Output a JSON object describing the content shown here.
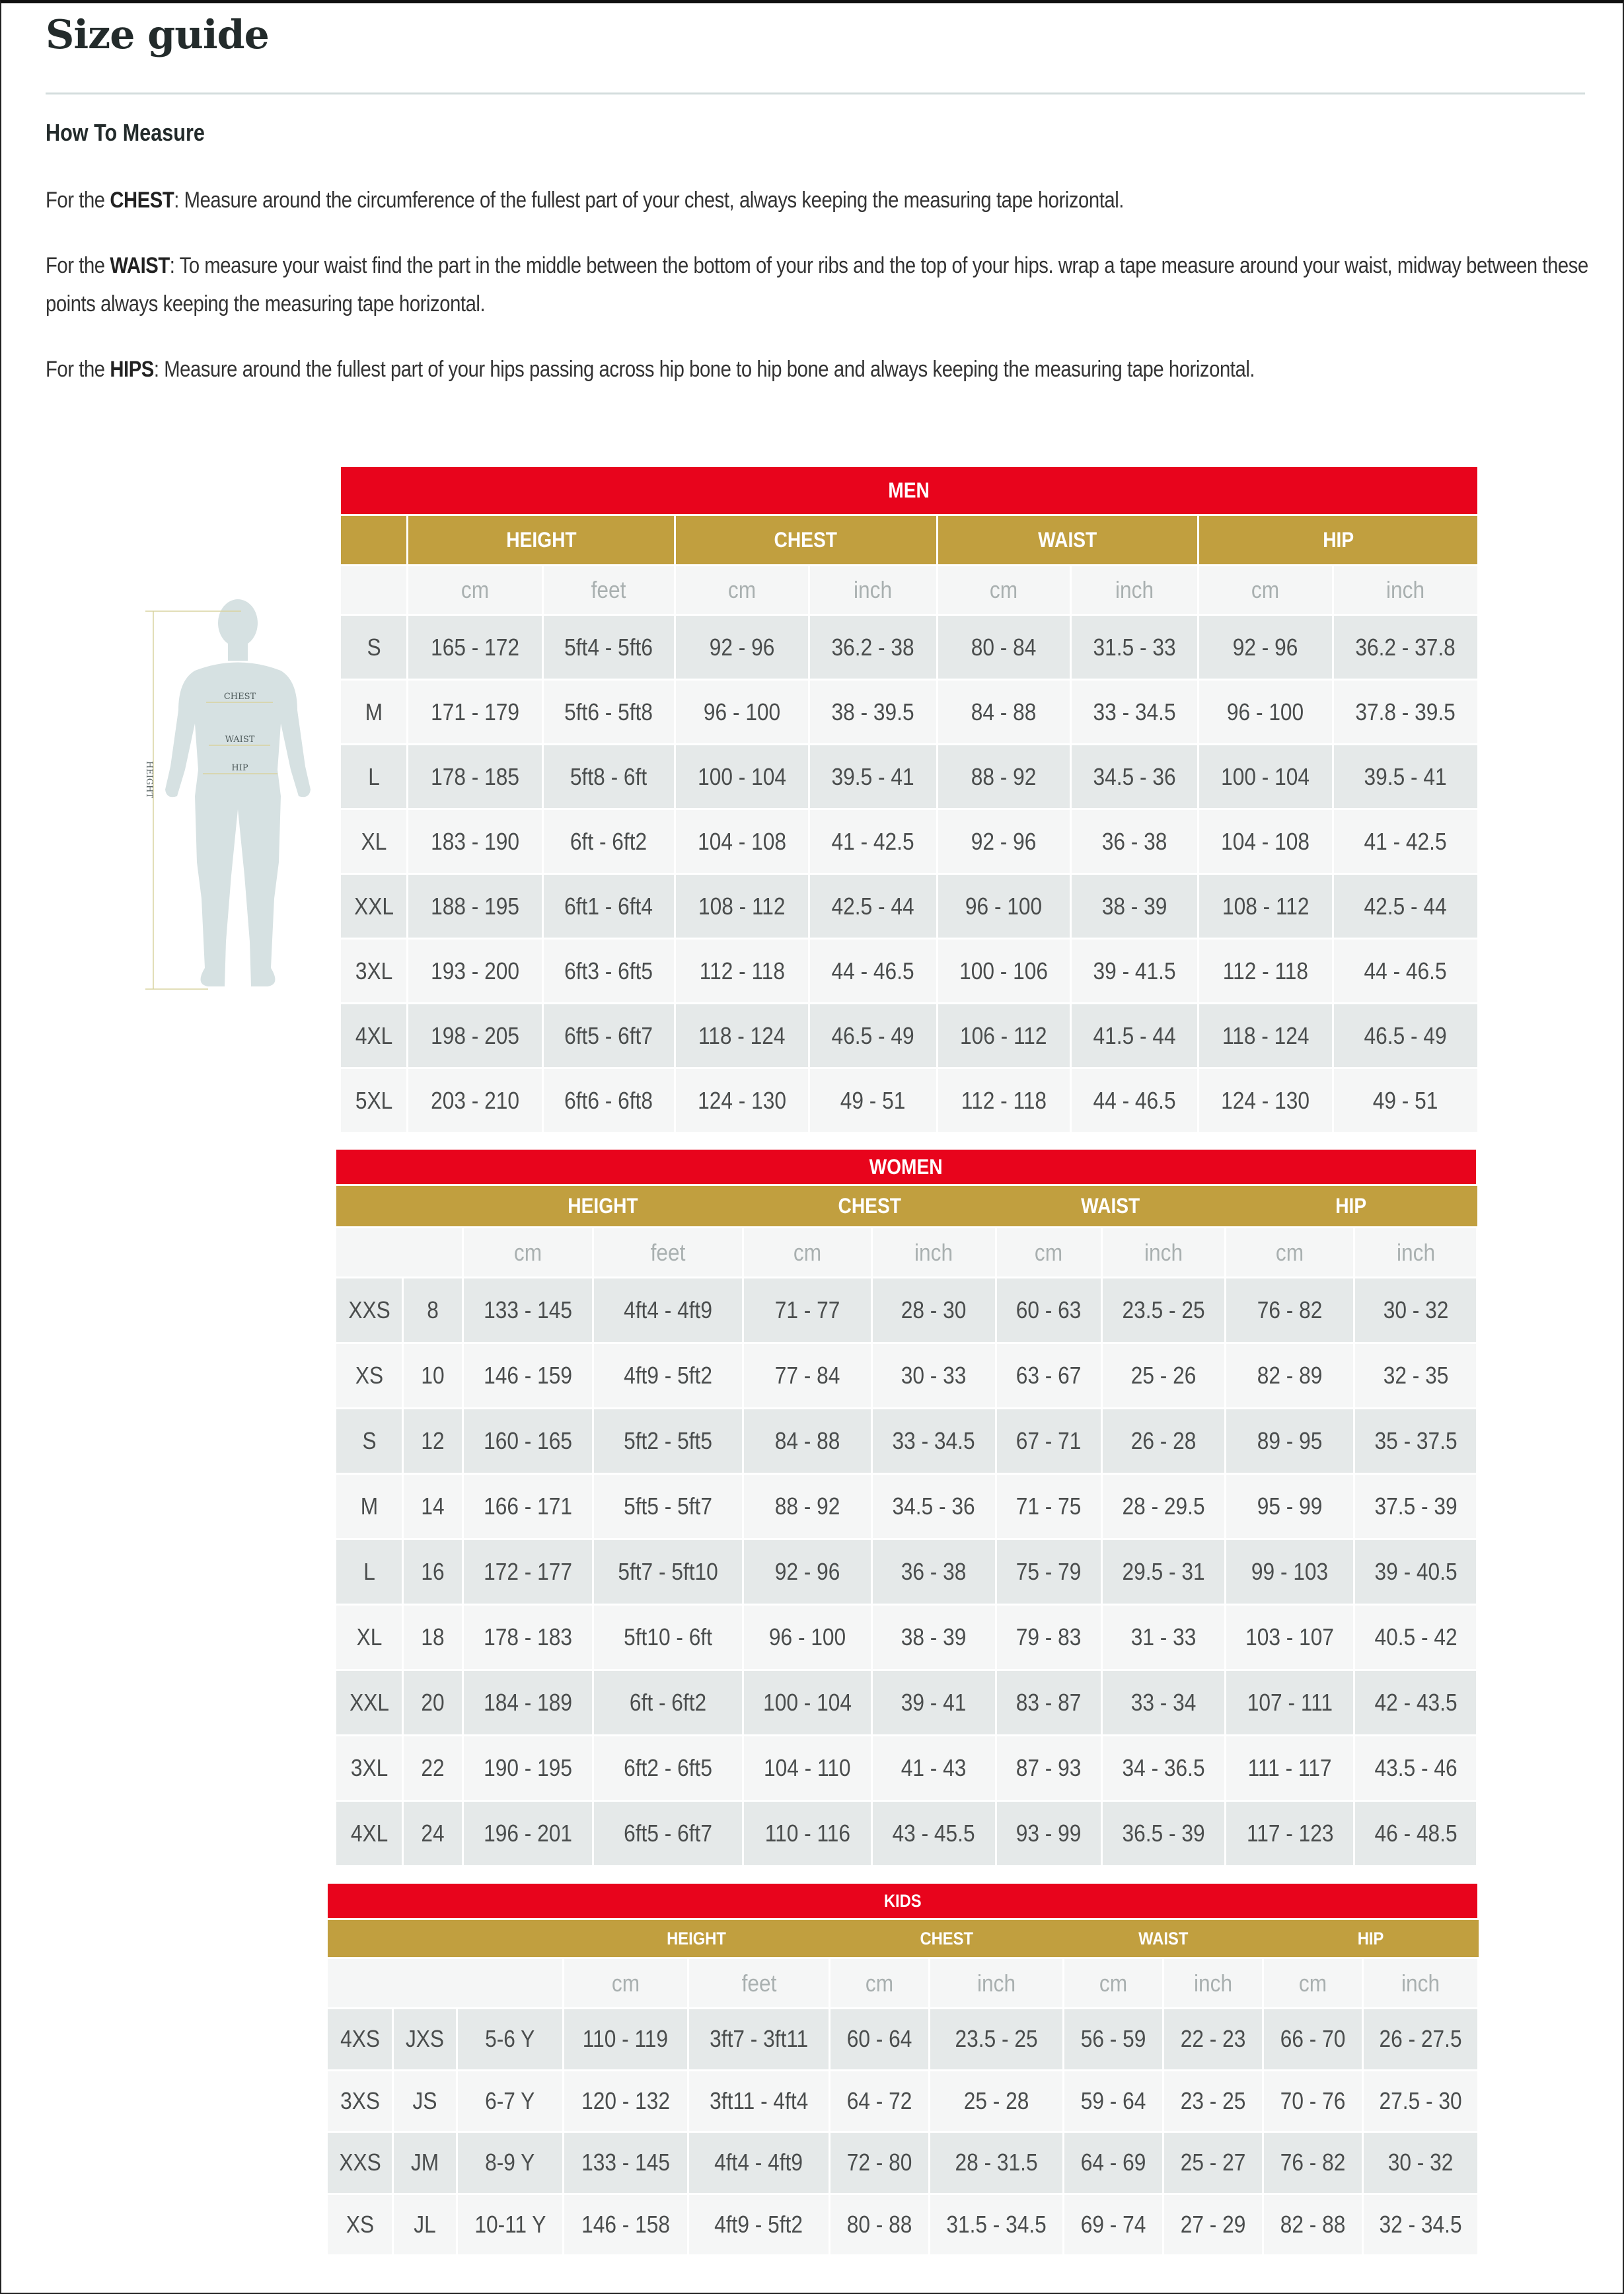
{
  "title": "Size guide",
  "how_to": {
    "heading": "How To Measure",
    "items": [
      {
        "prefix": "For the ",
        "term": "CHEST",
        "text": ": Measure around the circumference of the fullest part of your chest, always keeping the measuring tape horizontal."
      },
      {
        "prefix": "For the ",
        "term": "WAIST",
        "text": ": To measure your waist find the part in the middle between the bottom of your ribs and the top of your hips. wrap a tape measure around your waist, midway between these points always keeping the measuring tape horizontal."
      },
      {
        "prefix": "For the ",
        "term": "HIPS",
        "text": ": Measure around the fullest part of your hips passing across hip bone to hip bone and always keeping the measuring tape horizontal."
      }
    ]
  },
  "figure": {
    "labels": {
      "height": "HEIGHT",
      "chest": "CHEST",
      "waist": "WAIST",
      "hip": "HIP"
    }
  },
  "colors": {
    "title_bar": "#e8041c",
    "group_bar": "#c19f3f",
    "row_dark": "#e5e9e9",
    "row_light": "#f5f6f6"
  },
  "tables": {
    "men": {
      "title": "MEN",
      "groups": [
        "HEIGHT",
        "CHEST",
        "WAIST",
        "HIP"
      ],
      "units": [
        "cm",
        "feet",
        "cm",
        "inch",
        "cm",
        "inch",
        "cm",
        "inch"
      ],
      "rows": [
        [
          "S",
          "165 - 172",
          "5ft4 - 5ft6",
          "92 - 96",
          "36.2 - 38",
          "80 - 84",
          "31.5 - 33",
          "92 - 96",
          "36.2 - 37.8"
        ],
        [
          "M",
          "171 - 179",
          "5ft6 - 5ft8",
          "96 - 100",
          "38 - 39.5",
          "84 - 88",
          "33 - 34.5",
          "96 - 100",
          "37.8 - 39.5"
        ],
        [
          "L",
          "178 - 185",
          "5ft8 - 6ft",
          "100 - 104",
          "39.5 - 41",
          "88 - 92",
          "34.5 - 36",
          "100 - 104",
          "39.5 - 41"
        ],
        [
          "XL",
          "183 - 190",
          "6ft - 6ft2",
          "104 - 108",
          "41 - 42.5",
          "92 - 96",
          "36 - 38",
          "104 - 108",
          "41 - 42.5"
        ],
        [
          "XXL",
          "188 - 195",
          "6ft1 - 6ft4",
          "108 - 112",
          "42.5 - 44",
          "96 - 100",
          "38 - 39",
          "108 - 112",
          "42.5 - 44"
        ],
        [
          "3XL",
          "193 - 200",
          "6ft3 - 6ft5",
          "112 - 118",
          "44 - 46.5",
          "100 - 106",
          "39 - 41.5",
          "112 - 118",
          "44 - 46.5"
        ],
        [
          "4XL",
          "198 - 205",
          "6ft5 - 6ft7",
          "118 - 124",
          "46.5 - 49",
          "106 - 112",
          "41.5 - 44",
          "118 - 124",
          "46.5 - 49"
        ],
        [
          "5XL",
          "203 - 210",
          "6ft6 - 6ft8",
          "124 - 130",
          "49 - 51",
          "112 - 118",
          "44 - 46.5",
          "124 - 130",
          "49 - 51"
        ]
      ]
    },
    "women": {
      "title": "WOMEN",
      "groups": [
        "HEIGHT",
        "CHEST",
        "WAIST",
        "HIP"
      ],
      "units": [
        "cm",
        "feet",
        "cm",
        "inch",
        "cm",
        "inch",
        "cm",
        "inch"
      ],
      "rows": [
        [
          "XXS",
          "8",
          "133 - 145",
          "4ft4 - 4ft9",
          "71 - 77",
          "28 - 30",
          "60 - 63",
          "23.5 - 25",
          "76 - 82",
          "30 - 32"
        ],
        [
          "XS",
          "10",
          "146 - 159",
          "4ft9 - 5ft2",
          "77 - 84",
          "30 - 33",
          "63 - 67",
          "25 - 26",
          "82 - 89",
          "32 - 35"
        ],
        [
          "S",
          "12",
          "160 - 165",
          "5ft2 - 5ft5",
          "84 - 88",
          "33 - 34.5",
          "67 - 71",
          "26 - 28",
          "89 - 95",
          "35 - 37.5"
        ],
        [
          "M",
          "14",
          "166 - 171",
          "5ft5 - 5ft7",
          "88 - 92",
          "34.5 - 36",
          "71 - 75",
          "28 - 29.5",
          "95 - 99",
          "37.5 - 39"
        ],
        [
          "L",
          "16",
          "172 - 177",
          "5ft7 - 5ft10",
          "92 - 96",
          "36 - 38",
          "75 - 79",
          "29.5 - 31",
          "99 - 103",
          "39 - 40.5"
        ],
        [
          "XL",
          "18",
          "178 - 183",
          "5ft10 - 6ft",
          "96 - 100",
          "38 - 39",
          "79 - 83",
          "31 - 33",
          "103 - 107",
          "40.5 - 42"
        ],
        [
          "XXL",
          "20",
          "184 - 189",
          "6ft - 6ft2",
          "100 - 104",
          "39 - 41",
          "83 - 87",
          "33 - 34",
          "107 - 111",
          "42 - 43.5"
        ],
        [
          "3XL",
          "22",
          "190 - 195",
          "6ft2 - 6ft5",
          "104 - 110",
          "41 - 43",
          "87 - 93",
          "34 - 36.5",
          "111 - 117",
          "43.5 - 46"
        ],
        [
          "4XL",
          "24",
          "196 - 201",
          "6ft5 - 6ft7",
          "110 - 116",
          "43 - 45.5",
          "93 - 99",
          "36.5 - 39",
          "117 - 123",
          "46 - 48.5"
        ]
      ]
    },
    "kids": {
      "title": "KIDS",
      "groups": [
        "HEIGHT",
        "CHEST",
        "WAIST",
        "HIP"
      ],
      "units": [
        "cm",
        "feet",
        "cm",
        "inch",
        "cm",
        "inch",
        "cm",
        "inch"
      ],
      "rows": [
        [
          "4XS",
          "JXS",
          "5-6 Y",
          "110 - 119",
          "3ft7 - 3ft11",
          "60 - 64",
          "23.5 - 25",
          "56 - 59",
          "22 - 23",
          "66 - 70",
          "26 - 27.5"
        ],
        [
          "3XS",
          "JS",
          "6-7 Y",
          "120 - 132",
          "3ft11 - 4ft4",
          "64 - 72",
          "25 - 28",
          "59 - 64",
          "23 - 25",
          "70 - 76",
          "27.5 - 30"
        ],
        [
          "XXS",
          "JM",
          "8-9 Y",
          "133 - 145",
          "4ft4 - 4ft9",
          "72 - 80",
          "28 - 31.5",
          "64 - 69",
          "25 - 27",
          "76 - 82",
          "30 - 32"
        ],
        [
          "XS",
          "JL",
          "10-11 Y",
          "146 - 158",
          "4ft9 - 5ft2",
          "80 - 88",
          "31.5 - 34.5",
          "69 - 74",
          "27 - 29",
          "82 - 88",
          "32 - 34.5"
        ]
      ]
    }
  }
}
